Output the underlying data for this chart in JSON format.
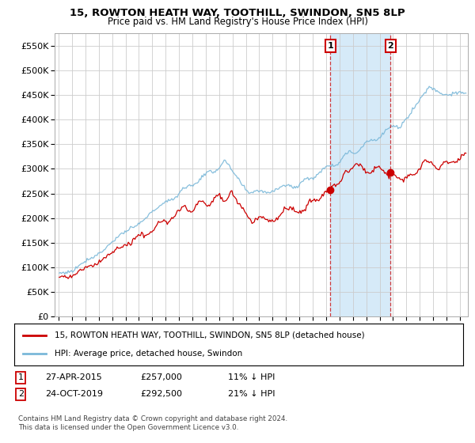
{
  "title": "15, ROWTON HEATH WAY, TOOTHILL, SWINDON, SN5 8LP",
  "subtitle": "Price paid vs. HM Land Registry's House Price Index (HPI)",
  "legend_line1": "15, ROWTON HEATH WAY, TOOTHILL, SWINDON, SN5 8LP (detached house)",
  "legend_line2": "HPI: Average price, detached house, Swindon",
  "annotation1_date": "27-APR-2015",
  "annotation1_price": "£257,000",
  "annotation1_pct": "11% ↓ HPI",
  "annotation2_date": "24-OCT-2019",
  "annotation2_price": "£292,500",
  "annotation2_pct": "21% ↓ HPI",
  "footer": "Contains HM Land Registry data © Crown copyright and database right 2024.\nThis data is licensed under the Open Government Licence v3.0.",
  "hpi_color": "#7ab8d9",
  "price_color": "#cc0000",
  "marker_color": "#cc0000",
  "vline_color": "#cc0000",
  "shade_color": "#d6eaf8",
  "background_color": "#ffffff",
  "grid_color": "#cccccc",
  "ylim": [
    0,
    575000
  ],
  "yticks": [
    0,
    50000,
    100000,
    150000,
    200000,
    250000,
    300000,
    350000,
    400000,
    450000,
    500000,
    550000
  ],
  "event1_x": 2015.32,
  "event1_y": 257000,
  "event2_x": 2019.82,
  "event2_y": 292500,
  "xlim_left": 1994.7,
  "xlim_right": 2025.6
}
